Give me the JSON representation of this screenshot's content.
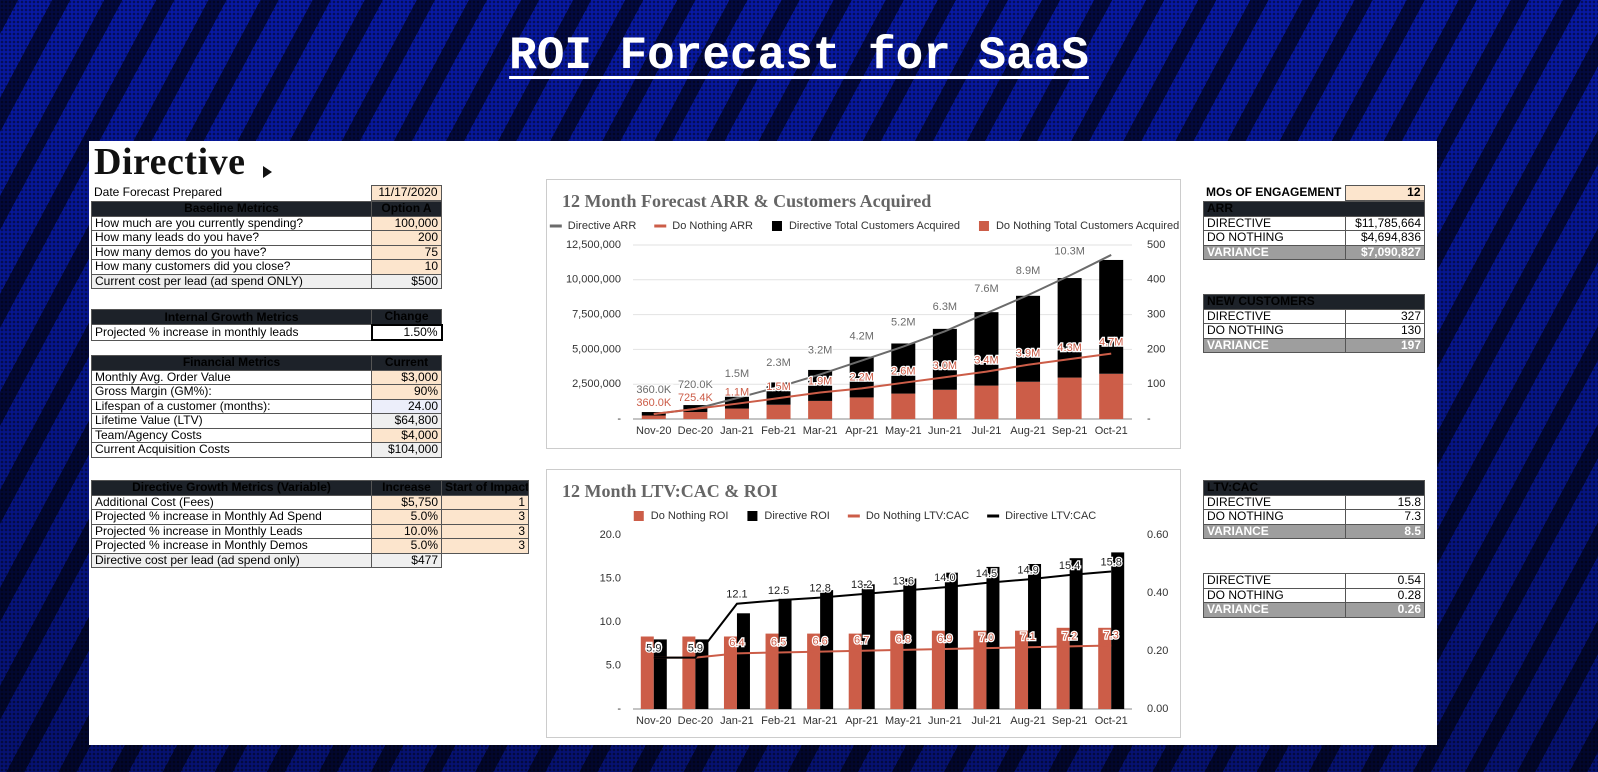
{
  "title": "ROI Forecast for SaaS",
  "logo": "Directive",
  "left_tables": [
    {
      "rows": [
        [
          "Date Forecast Prepared",
          "11/17/2020"
        ]
      ]
    },
    {
      "header": [
        "Baseline Metrics",
        "Option A"
      ],
      "rows": [
        [
          "How much are you currently spending?",
          "100,000"
        ],
        [
          "How many leads do you have?",
          "200"
        ],
        [
          "How many demos do you have?",
          "75"
        ],
        [
          "How many customers did you close?",
          "10"
        ],
        [
          "Current cost per lead (ad spend ONLY)",
          "$500"
        ]
      ]
    },
    {
      "header": [
        "Internal Growth Metrics",
        "Change"
      ],
      "rows": [
        [
          "Projected % increase in monthly leads",
          "1.50%"
        ]
      ]
    },
    {
      "header": [
        "Financial Metrics",
        "Current"
      ],
      "rows": [
        [
          "Monthly Avg. Order Value",
          "$3,000"
        ],
        [
          "Gross Margin (GM%):",
          "90%"
        ],
        [
          "Lifespan of a customer (months):",
          "24.00"
        ],
        [
          "Lifetime Value (LTV)",
          "$64,800"
        ],
        [
          "Team/Agency Costs",
          "$4,000"
        ],
        [
          "Current Acquisition Costs",
          "$104,000"
        ]
      ]
    },
    {
      "header": [
        "Directive Growth Metrics (Variable)",
        "Increase",
        "Start of Impact"
      ],
      "rows": [
        [
          "Additional Cost (Fees)",
          "$5,750",
          "1"
        ],
        [
          "Projected % increase in Monthly Ad Spend",
          "5.0%",
          "3"
        ],
        [
          "Projected % increase in Monthly Leads",
          "10.0%",
          "3"
        ],
        [
          "Projected % increase in Monthly Demos",
          "5.0%",
          "3"
        ],
        [
          "Directive cost per lead (ad spend only)",
          "$477"
        ]
      ]
    }
  ],
  "right_tables": [
    {
      "rows": [
        [
          "MOs OF ENGAGEMENT",
          "12"
        ]
      ]
    },
    {
      "title": "ARR",
      "rows": [
        [
          "DIRECTIVE",
          "$11,785,664"
        ],
        [
          "DO NOTHING",
          "$4,694,836"
        ],
        [
          "VARIANCE",
          "$7,090,827"
        ]
      ]
    },
    {
      "title": "NEW CUSTOMERS",
      "rows": [
        [
          "DIRECTIVE",
          "327"
        ],
        [
          "DO NOTHING",
          "130"
        ],
        [
          "VARIANCE",
          "197"
        ]
      ]
    },
    {
      "title": "LTV:CAC",
      "rows": [
        [
          "DIRECTIVE",
          "15.8"
        ],
        [
          "DO NOTHING",
          "7.3"
        ],
        [
          "VARIANCE",
          "8.5"
        ]
      ]
    },
    {
      "rows": [
        [
          "DIRECTIVE",
          "0.54"
        ],
        [
          "DO NOTHING",
          "0.28"
        ],
        [
          "VARIANCE",
          "0.26"
        ]
      ]
    }
  ],
  "chart_data": [
    {
      "type": "combo",
      "title": "12 Month Forecast ARR & Customers Acquired",
      "stacked": true,
      "grid": true,
      "categories": [
        "Nov-20",
        "Dec-20",
        "Jan-21",
        "Feb-21",
        "Mar-21",
        "Apr-21",
        "May-21",
        "Jun-21",
        "Jul-21",
        "Aug-21",
        "Sep-21",
        "Oct-21"
      ],
      "ylim": [
        0,
        12500000
      ],
      "yticks": [
        {
          "value": 0,
          "label": "-"
        },
        {
          "value": 2500000,
          "label": "2,500,000"
        },
        {
          "value": 5000000,
          "label": "5,000,000"
        },
        {
          "value": 7500000,
          "label": "7,500,000"
        },
        {
          "value": 10000000,
          "label": "10,000,000"
        },
        {
          "value": 12500000,
          "label": "12,500,000"
        }
      ],
      "y2lim": [
        0,
        500
      ],
      "y2ticks": [
        {
          "value": 0,
          "label": "-"
        },
        100,
        200,
        300,
        400,
        500
      ],
      "series": [
        {
          "name": "Directive ARR",
          "kind": "line",
          "color": "#6b6b6b",
          "values": [
            360000,
            720000,
            1500000,
            2300000,
            3200000,
            4200000,
            5200000,
            6300000,
            7600000,
            8900000,
            10300000,
            11785664
          ],
          "value_labels": [
            "360.0K",
            "720.0K",
            "1.5M",
            "2.3M",
            "3.2M",
            "4.2M",
            "5.2M",
            "6.3M",
            "7.6M",
            "8.9M",
            "10.3M",
            null
          ]
        },
        {
          "name": "Do Nothing ARR",
          "kind": "line",
          "color": "#cc5d48",
          "values": [
            360000,
            725400,
            1100000,
            1500000,
            1900000,
            2200000,
            2600000,
            3000000,
            3400000,
            3900000,
            4300000,
            4694836
          ],
          "value_labels": [
            "360.0K",
            "725.4K",
            "1.1M",
            "1.5M",
            "1.9M",
            "2.2M",
            "2.6M",
            "3.0M",
            "3.4M",
            "3.9M",
            "4.3M",
            "4.7M"
          ]
        },
        {
          "name": "Directive Total Customers Acquired",
          "kind": "bar",
          "axis": "y2",
          "color": "#000000",
          "values": [
            10,
            20,
            42,
            64,
            89,
            117,
            144,
            175,
            211,
            247,
            286,
            327
          ]
        },
        {
          "name": "Do Nothing Total Customers Acquired",
          "kind": "bar",
          "axis": "y2",
          "color": "#cc5d48",
          "values": [
            10,
            20,
            30,
            41,
            52,
            62,
            73,
            84,
            96,
            107,
            119,
            130
          ]
        }
      ]
    },
    {
      "type": "combo",
      "title": "12 Month LTV:CAC & ROI",
      "stacked": false,
      "grid": false,
      "categories": [
        "Nov-20",
        "Dec-20",
        "Jan-21",
        "Feb-21",
        "Mar-21",
        "Apr-21",
        "May-21",
        "Jun-21",
        "Jul-21",
        "Aug-21",
        "Sep-21",
        "Oct-21"
      ],
      "ylim": [
        0,
        20
      ],
      "yticks": [
        {
          "value": 0,
          "label": "-"
        },
        {
          "value": 5,
          "label": "5.0"
        },
        {
          "value": 10,
          "label": "10.0"
        },
        {
          "value": 15,
          "label": "15.0"
        },
        {
          "value": 20,
          "label": "20.0"
        }
      ],
      "y2lim": [
        0,
        0.6
      ],
      "y2ticks": [
        {
          "value": 0,
          "label": "0.00"
        },
        {
          "value": 0.2,
          "label": "0.20"
        },
        {
          "value": 0.4,
          "label": "0.40"
        },
        {
          "value": 0.6,
          "label": "0.60"
        }
      ],
      "series": [
        {
          "name": "Do Nothing ROI",
          "kind": "bar",
          "axis": "y2",
          "color": "#cc5d48",
          "values": [
            0.25,
            0.25,
            0.25,
            0.26,
            0.26,
            0.26,
            0.27,
            0.27,
            0.27,
            0.27,
            0.28,
            0.28
          ]
        },
        {
          "name": "Directive ROI",
          "kind": "bar",
          "axis": "y2",
          "color": "#000000",
          "values": [
            0.24,
            0.24,
            0.33,
            0.38,
            0.41,
            0.43,
            0.45,
            0.47,
            0.49,
            0.5,
            0.52,
            0.54
          ]
        },
        {
          "name": "Do Nothing LTV:CAC",
          "kind": "line",
          "color": "#cc5d48",
          "values": [
            5.9,
            5.9,
            6.4,
            6.5,
            6.6,
            6.7,
            6.8,
            6.9,
            7.0,
            7.1,
            7.2,
            7.3
          ],
          "value_labels": [
            "5.9",
            "5.9",
            "6.4",
            "6.5",
            "6.6",
            "6.7",
            "6.8",
            "6.9",
            "7.0",
            "7.1",
            "7.2",
            "7.3"
          ]
        },
        {
          "name": "Directive LTV:CAC",
          "kind": "line",
          "color": "#000000",
          "values": [
            5.9,
            5.9,
            12.1,
            12.5,
            12.8,
            13.2,
            13.6,
            14.0,
            14.5,
            14.9,
            15.4,
            15.8
          ],
          "value_labels": [
            "5.9",
            "5.9",
            "12.1",
            "12.5",
            "12.8",
            "13.2",
            "13.6",
            "14.0",
            "14.5",
            "14.9",
            "15.4",
            "15.8"
          ]
        }
      ]
    }
  ]
}
